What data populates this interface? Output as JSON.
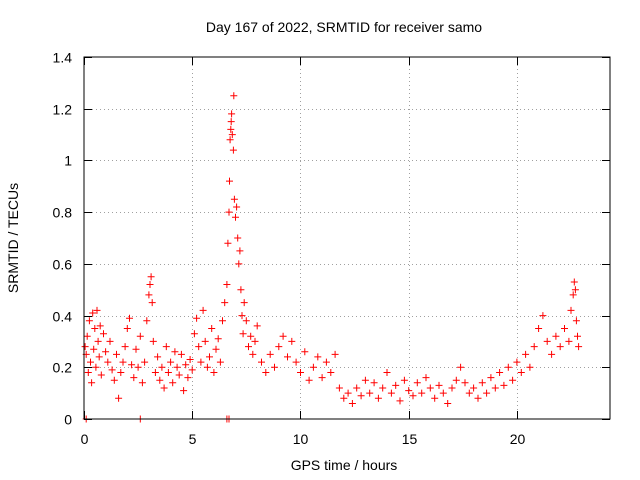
{
  "chart_data": {
    "type": "scatter",
    "title": "Day 167 of 2022, SRMTID for receiver samo",
    "xlabel": "GPS time / hours",
    "ylabel": "SRMTID / TECUs",
    "xlim": [
      0,
      24.3
    ],
    "ylim": [
      0,
      1.4
    ],
    "xticks": [
      0,
      5,
      10,
      15,
      20
    ],
    "xtick_labels": [
      "0",
      "5",
      "10",
      "15",
      "20"
    ],
    "yticks": [
      0,
      0.2,
      0.4,
      0.6,
      0.8,
      1.0,
      1.2,
      1.4
    ],
    "ytick_labels": [
      "0",
      "0.2",
      "0.4",
      "0.6",
      "0.8",
      "1",
      "1.2",
      "1.4"
    ],
    "grid": true,
    "marker": "+",
    "color": "#ff0000",
    "series": [
      {
        "name": "SRMTID",
        "points": [
          [
            0.05,
            0.28
          ],
          [
            0.1,
            0.25
          ],
          [
            0.15,
            0.32
          ],
          [
            0.2,
            0.18
          ],
          [
            0.25,
            0.38
          ],
          [
            0.3,
            0.22
          ],
          [
            0.35,
            0.14
          ],
          [
            0.4,
            0.41
          ],
          [
            0.45,
            0.27
          ],
          [
            0.5,
            0.35
          ],
          [
            0.55,
            0.2
          ],
          [
            0.6,
            0.42
          ],
          [
            0.65,
            0.3
          ],
          [
            0.7,
            0.24
          ],
          [
            0.75,
            0.36
          ],
          [
            0.8,
            0.17
          ],
          [
            0.9,
            0.33
          ],
          [
            1.0,
            0.26
          ],
          [
            1.1,
            0.22
          ],
          [
            1.2,
            0.3
          ],
          [
            1.3,
            0.19
          ],
          [
            1.4,
            0.15
          ],
          [
            1.5,
            0.25
          ],
          [
            1.6,
            0.08
          ],
          [
            1.7,
            0.18
          ],
          [
            1.8,
            0.22
          ],
          [
            1.9,
            0.28
          ],
          [
            2.0,
            0.35
          ],
          [
            2.1,
            0.39
          ],
          [
            2.2,
            0.21
          ],
          [
            2.3,
            0.16
          ],
          [
            2.4,
            0.27
          ],
          [
            2.5,
            0.2
          ],
          [
            2.6,
            0.32
          ],
          [
            2.7,
            0.14
          ],
          [
            2.8,
            0.22
          ],
          [
            2.9,
            0.38
          ],
          [
            3.0,
            0.48
          ],
          [
            3.05,
            0.52
          ],
          [
            3.1,
            0.55
          ],
          [
            3.15,
            0.45
          ],
          [
            3.2,
            0.3
          ],
          [
            3.3,
            0.18
          ],
          [
            3.4,
            0.24
          ],
          [
            3.5,
            0.15
          ],
          [
            3.6,
            0.2
          ],
          [
            3.7,
            0.12
          ],
          [
            3.8,
            0.28
          ],
          [
            3.9,
            0.18
          ],
          [
            4.0,
            0.22
          ],
          [
            4.1,
            0.14
          ],
          [
            4.2,
            0.26
          ],
          [
            4.3,
            0.2
          ],
          [
            4.4,
            0.17
          ],
          [
            4.5,
            0.25
          ],
          [
            4.6,
            0.11
          ],
          [
            4.7,
            0.21
          ],
          [
            4.8,
            0.16
          ],
          [
            4.9,
            0.23
          ],
          [
            5.0,
            0.19
          ],
          [
            5.1,
            0.33
          ],
          [
            5.2,
            0.39
          ],
          [
            5.3,
            0.28
          ],
          [
            5.4,
            0.22
          ],
          [
            5.5,
            0.42
          ],
          [
            5.6,
            0.3
          ],
          [
            5.7,
            0.2
          ],
          [
            5.8,
            0.24
          ],
          [
            5.9,
            0.35
          ],
          [
            6.0,
            0.18
          ],
          [
            6.1,
            0.27
          ],
          [
            6.2,
            0.31
          ],
          [
            6.3,
            0.22
          ],
          [
            6.4,
            0.38
          ],
          [
            6.5,
            0.45
          ],
          [
            6.6,
            0.52
          ],
          [
            6.65,
            0.68
          ],
          [
            6.7,
            0.8
          ],
          [
            6.72,
            0.92
          ],
          [
            6.75,
            1.08
          ],
          [
            6.78,
            1.12
          ],
          [
            6.8,
            1.15
          ],
          [
            6.82,
            1.18
          ],
          [
            6.85,
            1.1
          ],
          [
            6.9,
            1.04
          ],
          [
            6.92,
            1.25
          ],
          [
            6.95,
            0.85
          ],
          [
            7.0,
            0.78
          ],
          [
            7.05,
            0.82
          ],
          [
            7.1,
            0.7
          ],
          [
            7.15,
            0.6
          ],
          [
            7.2,
            0.65
          ],
          [
            7.25,
            0.5
          ],
          [
            7.3,
            0.4
          ],
          [
            7.35,
            0.33
          ],
          [
            7.4,
            0.45
          ],
          [
            7.5,
            0.38
          ],
          [
            7.6,
            0.28
          ],
          [
            7.7,
            0.32
          ],
          [
            7.8,
            0.25
          ],
          [
            7.9,
            0.3
          ],
          [
            8.0,
            0.36
          ],
          [
            8.2,
            0.22
          ],
          [
            8.4,
            0.18
          ],
          [
            8.6,
            0.25
          ],
          [
            8.8,
            0.2
          ],
          [
            9.0,
            0.28
          ],
          [
            9.2,
            0.32
          ],
          [
            9.4,
            0.24
          ],
          [
            9.6,
            0.3
          ],
          [
            9.8,
            0.22
          ],
          [
            10.0,
            0.18
          ],
          [
            10.2,
            0.26
          ],
          [
            10.4,
            0.15
          ],
          [
            10.6,
            0.2
          ],
          [
            10.8,
            0.24
          ],
          [
            11.0,
            0.16
          ],
          [
            11.2,
            0.22
          ],
          [
            11.4,
            0.18
          ],
          [
            11.6,
            0.25
          ],
          [
            11.8,
            0.12
          ],
          [
            12.0,
            0.08
          ],
          [
            12.2,
            0.1
          ],
          [
            12.4,
            0.06
          ],
          [
            12.6,
            0.12
          ],
          [
            12.8,
            0.09
          ],
          [
            13.0,
            0.15
          ],
          [
            13.2,
            0.1
          ],
          [
            13.4,
            0.14
          ],
          [
            13.6,
            0.08
          ],
          [
            13.8,
            0.12
          ],
          [
            14.0,
            0.18
          ],
          [
            14.2,
            0.1
          ],
          [
            14.4,
            0.13
          ],
          [
            14.6,
            0.07
          ],
          [
            14.8,
            0.15
          ],
          [
            15.0,
            0.11
          ],
          [
            15.2,
            0.09
          ],
          [
            15.4,
            0.14
          ],
          [
            15.6,
            0.1
          ],
          [
            15.8,
            0.16
          ],
          [
            16.0,
            0.12
          ],
          [
            16.2,
            0.08
          ],
          [
            16.4,
            0.13
          ],
          [
            16.6,
            0.1
          ],
          [
            16.8,
            0.06
          ],
          [
            17.0,
            0.12
          ],
          [
            17.2,
            0.15
          ],
          [
            17.4,
            0.2
          ],
          [
            17.6,
            0.14
          ],
          [
            17.8,
            0.1
          ],
          [
            18.0,
            0.12
          ],
          [
            18.2,
            0.08
          ],
          [
            18.4,
            0.14
          ],
          [
            18.6,
            0.1
          ],
          [
            18.8,
            0.16
          ],
          [
            19.0,
            0.12
          ],
          [
            19.2,
            0.18
          ],
          [
            19.4,
            0.13
          ],
          [
            19.6,
            0.2
          ],
          [
            19.8,
            0.15
          ],
          [
            20.0,
            0.22
          ],
          [
            20.2,
            0.18
          ],
          [
            20.4,
            0.25
          ],
          [
            20.6,
            0.2
          ],
          [
            20.8,
            0.28
          ],
          [
            21.0,
            0.35
          ],
          [
            21.2,
            0.4
          ],
          [
            21.4,
            0.3
          ],
          [
            21.6,
            0.25
          ],
          [
            21.8,
            0.32
          ],
          [
            22.0,
            0.28
          ],
          [
            22.2,
            0.35
          ],
          [
            22.4,
            0.3
          ],
          [
            22.5,
            0.42
          ],
          [
            22.6,
            0.48
          ],
          [
            22.65,
            0.53
          ],
          [
            22.7,
            0.5
          ],
          [
            22.75,
            0.38
          ],
          [
            22.8,
            0.32
          ],
          [
            22.85,
            0.28
          ],
          [
            0.1,
            0.0
          ],
          [
            2.6,
            0.0
          ],
          [
            6.6,
            0.0
          ],
          [
            6.7,
            0.0
          ]
        ]
      }
    ]
  }
}
